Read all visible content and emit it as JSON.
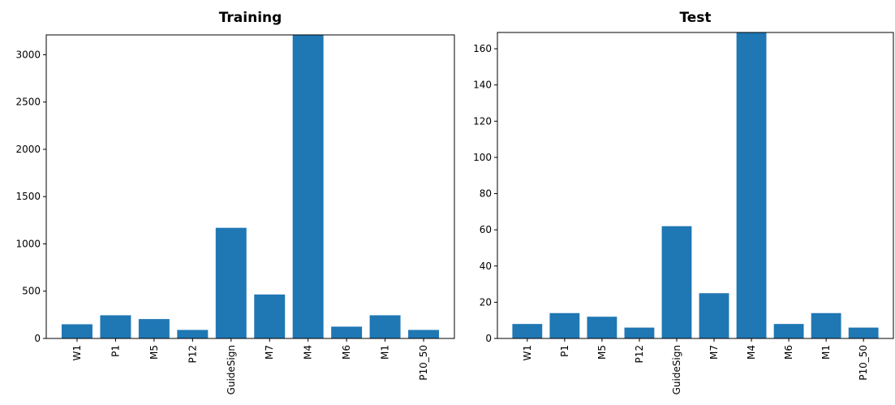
{
  "chart_data": [
    {
      "type": "bar",
      "title": "Training",
      "xlabel": "",
      "ylabel": "",
      "categories": [
        "W1",
        "P1",
        "M5",
        "P12",
        "GuideSign",
        "M7",
        "M4",
        "M6",
        "M1",
        "P10_50"
      ],
      "values": [
        150,
        245,
        205,
        90,
        1170,
        465,
        3210,
        125,
        245,
        90
      ],
      "ylim": [
        0,
        3210
      ],
      "yticks": [
        0,
        500,
        1000,
        1500,
        2000,
        2500,
        3000
      ],
      "grid": false,
      "color": "#1f77b4"
    },
    {
      "type": "bar",
      "title": "Test",
      "xlabel": "",
      "ylabel": "",
      "categories": [
        "W1",
        "P1",
        "M5",
        "P12",
        "GuideSign",
        "M7",
        "M4",
        "M6",
        "M1",
        "P10_50"
      ],
      "values": [
        8,
        14,
        12,
        6,
        62,
        25,
        169,
        8,
        14,
        6
      ],
      "ylim": [
        0,
        169
      ],
      "yticks": [
        0,
        20,
        40,
        60,
        80,
        100,
        120,
        140,
        160
      ],
      "grid": false,
      "color": "#1f77b4"
    }
  ]
}
